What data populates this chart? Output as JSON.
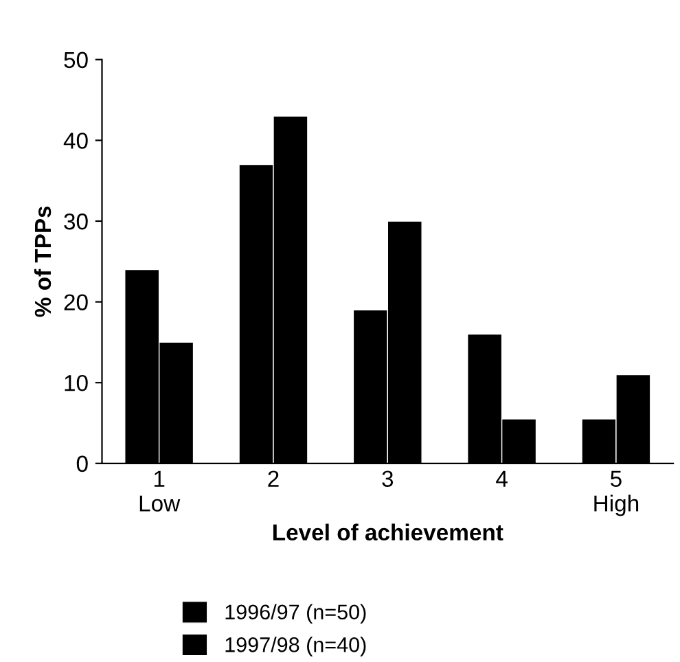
{
  "chart_data": {
    "type": "bar",
    "xlabel": "Level of achievement",
    "ylabel": "% of TPPs",
    "categories": [
      "1\nLow",
      "2",
      "3",
      "4",
      "5\nHigh"
    ],
    "series": [
      {
        "name": "1996/97 (n=50)",
        "color": "#000000",
        "values": [
          24,
          37,
          19,
          16,
          5.5
        ]
      },
      {
        "name": "1997/98 (n=40)",
        "color": "#000000",
        "values": [
          15,
          43,
          30,
          5.5,
          11
        ]
      }
    ],
    "ylim": [
      0,
      50
    ],
    "yticks": [
      0,
      10,
      20,
      30,
      40,
      50
    ],
    "grid": false,
    "legend": "bottom"
  }
}
